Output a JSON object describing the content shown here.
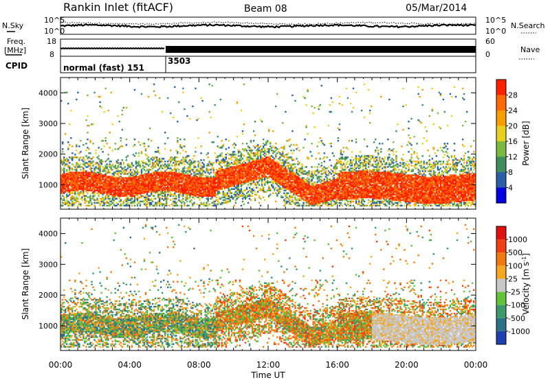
{
  "header": {
    "station": "Rankin Inlet (fitACF)",
    "beam": "Beam 08",
    "date": "05/Mar/2014"
  },
  "noise_panel": {
    "left_label": "N.Sky",
    "right_label": "N.Search",
    "left_ticks": [
      "10^5",
      "10^0"
    ],
    "right_ticks": [
      "10^5",
      "10^0"
    ]
  },
  "freq_panel": {
    "left_label_1": "Freq.",
    "left_label_2": "[MHz]",
    "left_ticks": [
      "18",
      "8"
    ],
    "right_ticks": [
      "60",
      "0"
    ],
    "right_label": "Nave"
  },
  "cpid_panel": {
    "label": "CPID",
    "segments": [
      {
        "text": "normal (fast) 151",
        "start": "00:00"
      },
      {
        "text": "3503",
        "start": "06:00"
      }
    ]
  },
  "chart_data": [
    {
      "type": "heatmap",
      "quantity": "Power",
      "ylabel": "Slant Range [km]",
      "ylim": [
        200,
        4500
      ],
      "yticks": [
        1000,
        2000,
        3000,
        4000
      ],
      "xlim_hours": [
        0,
        24
      ],
      "colorbar": {
        "label": "Power [dB]",
        "tick_labels": [
          "28",
          "24",
          "20",
          "16",
          "12",
          "8",
          "4"
        ],
        "colors": [
          "#0000e0",
          "#2a5ea8",
          "#3e8e5e",
          "#7ab840",
          "#e8d020",
          "#f5a000",
          "#ff6a00",
          "#ff2000"
        ]
      },
      "features": [
        {
          "time_range": [
            "00:00",
            "09:00"
          ],
          "range_km": [
            700,
            1300
          ],
          "level": "strong"
        },
        {
          "time_range": [
            "09:00",
            "13:00"
          ],
          "range_km": [
            1200,
            1900
          ],
          "level": "strong"
        },
        {
          "time_range": [
            "13:00",
            "15:00"
          ],
          "range_km": [
            400,
            1000
          ],
          "level": "strong"
        },
        {
          "time_range": [
            "16:00",
            "24:00"
          ],
          "range_km": [
            400,
            1200
          ],
          "level": "strong"
        }
      ]
    },
    {
      "type": "heatmap",
      "quantity": "Velocity",
      "ylabel": "Slant Range [km]",
      "ylim": [
        200,
        4500
      ],
      "yticks": [
        1000,
        2000,
        3000,
        4000
      ],
      "xlim_hours": [
        0,
        24
      ],
      "colorbar": {
        "label": "Velocity [m s",
        "label_sup": "-1",
        "label_end": "]",
        "tick_labels": [
          "1000",
          "500",
          "100",
          "25",
          "-25",
          "-100",
          "-500",
          "-1000"
        ],
        "colors": [
          "#2040b0",
          "#2e6f8a",
          "#3a9a6a",
          "#62c23a",
          "#c8c8c8",
          "#f5a623",
          "#f07a10",
          "#ee4010",
          "#e01010"
        ]
      },
      "features": [
        {
          "time_range": [
            "00:00",
            "09:00"
          ],
          "range_km": [
            700,
            1400
          ],
          "level": "mixed"
        },
        {
          "time_range": [
            "09:00",
            "13:00"
          ],
          "range_km": [
            1200,
            2000
          ],
          "level": "mixed"
        },
        {
          "time_range": [
            "18:00",
            "24:00"
          ],
          "range_km": [
            400,
            1800
          ],
          "level": "low"
        }
      ]
    }
  ],
  "xaxis": {
    "ticks": [
      "00:00",
      "04:00",
      "08:00",
      "12:00",
      "16:00",
      "20:00",
      "00:00"
    ],
    "label": "Time UT"
  }
}
